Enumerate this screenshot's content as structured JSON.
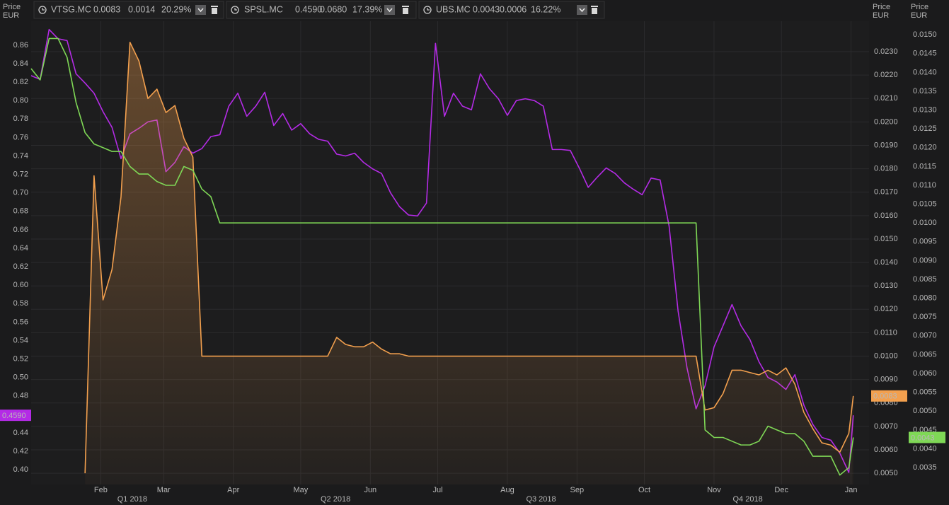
{
  "chart_data": {
    "type": "line",
    "axis_title": "Price",
    "axis_unit": "EUR",
    "grid": true,
    "x": [
      0,
      4,
      8,
      12,
      16,
      20,
      24,
      28,
      32,
      36,
      40,
      44,
      48,
      52,
      56,
      60,
      64,
      68,
      72,
      76,
      80,
      84,
      88,
      92,
      96,
      100,
      104,
      108,
      112,
      116,
      120,
      124,
      128,
      132,
      136,
      140,
      144,
      148,
      152,
      156,
      160,
      164,
      168,
      172,
      176,
      180,
      184,
      188,
      192,
      196,
      200,
      204,
      208,
      212,
      216,
      220,
      224,
      228,
      232,
      236,
      240,
      244,
      248,
      252,
      256,
      260,
      264,
      268,
      272,
      276,
      280,
      284,
      288,
      292,
      296,
      300,
      304,
      308,
      312,
      316,
      320,
      324,
      328,
      332,
      336,
      340,
      344,
      348,
      352,
      356,
      360,
      364,
      366
    ],
    "xlim": [
      0,
      373
    ],
    "xticks": [
      {
        "value": 31,
        "label": "Feb"
      },
      {
        "value": 59,
        "label": "Mar"
      },
      {
        "value": 90,
        "label": "Apr"
      },
      {
        "value": 120,
        "label": "May"
      },
      {
        "value": 151,
        "label": "Jun"
      },
      {
        "value": 181,
        "label": "Jul"
      },
      {
        "value": 212,
        "label": "Aug"
      },
      {
        "value": 243,
        "label": "Sep"
      },
      {
        "value": 273,
        "label": "Oct"
      },
      {
        "value": 304,
        "label": "Nov"
      },
      {
        "value": 334,
        "label": "Dec"
      },
      {
        "value": 365,
        "label": "Jan"
      }
    ],
    "quarters": [
      "Q1 2018",
      "Q2 2018",
      "Q3 2018",
      "Q4 2018"
    ],
    "ylim": [
      0.384,
      0.886
    ],
    "yticks": [
      {
        "value": 0.4,
        "label": "0.40"
      },
      0.42,
      0.44,
      0.46,
      0.48,
      {
        "value": 0.5,
        "label": "0.50"
      },
      0.52,
      0.54,
      0.56,
      0.58,
      {
        "value": 0.6,
        "label": "0.60"
      },
      0.62,
      0.64,
      0.66,
      0.68,
      {
        "value": 0.7,
        "label": "0.70"
      },
      0.72,
      0.74,
      0.76,
      0.78,
      {
        "value": 0.8,
        "label": "0.80"
      },
      0.82,
      0.84,
      0.86
    ],
    "y2lim": [
      0.00452,
      0.0243
    ],
    "y2ticks": [
      {
        "value": 0.005,
        "label": "0.0050"
      },
      {
        "value": 0.006,
        "label": "0.0060"
      },
      {
        "value": 0.007,
        "label": "0.0070"
      },
      {
        "value": 0.008,
        "label": "0.0080"
      },
      {
        "value": 0.009,
        "label": "0.0090"
      },
      {
        "value": 0.01,
        "label": "0.0100"
      },
      {
        "value": 0.011,
        "label": "0.0110"
      },
      {
        "value": 0.012,
        "label": "0.0120"
      },
      {
        "value": 0.013,
        "label": "0.0130"
      },
      {
        "value": 0.014,
        "label": "0.0140"
      },
      {
        "value": 0.015,
        "label": "0.0150"
      },
      {
        "value": 0.016,
        "label": "0.0160"
      },
      {
        "value": 0.017,
        "label": "0.0170"
      },
      {
        "value": 0.018,
        "label": "0.0180"
      },
      {
        "value": 0.019,
        "label": "0.0190"
      },
      {
        "value": 0.02,
        "label": "0.0200"
      },
      {
        "value": 0.021,
        "label": "0.0210"
      },
      {
        "value": 0.022,
        "label": "0.0220"
      },
      {
        "value": 0.023,
        "label": "0.0230"
      }
    ],
    "y3lim": [
      0.00305,
      0.01536
    ],
    "y3ticks": [
      0.0035,
      {
        "value": 0.004,
        "label": "0.0040"
      },
      0.0045,
      {
        "value": 0.005,
        "label": "0.0050"
      },
      0.0055,
      {
        "value": 0.006,
        "label": "0.0060"
      },
      0.0065,
      {
        "value": 0.007,
        "label": "0.0070"
      },
      0.0075,
      {
        "value": 0.008,
        "label": "0.0080"
      },
      0.0085,
      {
        "value": 0.009,
        "label": "0.0090"
      },
      0.0095,
      {
        "value": 0.01,
        "label": "0.0100"
      },
      0.0105,
      {
        "value": 0.011,
        "label": "0.0110"
      },
      0.0115,
      {
        "value": 0.012,
        "label": "0.0120"
      },
      0.0125,
      {
        "value": 0.013,
        "label": "0.0130"
      },
      0.0135,
      {
        "value": 0.014,
        "label": "0.0140"
      },
      0.0145,
      {
        "value": 0.015,
        "label": "0.0150"
      }
    ],
    "series": [
      {
        "name": "VTSG.MC",
        "color": "#f3a04e",
        "axis": "y2",
        "area": true,
        "last": 0.0083,
        "change": 0.0014,
        "change_pct": {
          "value": 20.29,
          "label": "20.29%"
        },
        "values": [
          null,
          null,
          null,
          null,
          null,
          null,
          0.005,
          0.0177,
          0.0124,
          0.0137,
          0.0168,
          0.0234,
          0.0226,
          0.021,
          0.0214,
          0.0204,
          0.0207,
          0.0193,
          0.0185,
          0.01,
          0.01,
          0.01,
          0.01,
          0.01,
          0.01,
          0.01,
          0.01,
          0.01,
          0.01,
          0.01,
          0.01,
          0.01,
          0.01,
          0.01,
          0.0108,
          0.0105,
          0.0104,
          0.0104,
          0.0106,
          0.0103,
          0.0101,
          0.0101,
          0.01,
          0.01,
          0.01,
          0.01,
          0.01,
          0.01,
          0.01,
          0.01,
          0.01,
          0.01,
          0.01,
          0.01,
          0.01,
          0.01,
          0.01,
          0.01,
          0.01,
          0.01,
          0.01,
          0.01,
          0.01,
          0.01,
          0.01,
          0.01,
          0.01,
          0.01,
          0.01,
          0.01,
          0.01,
          0.01,
          0.01,
          0.01,
          0.01,
          0.0077,
          0.0078,
          0.0084,
          0.0094,
          0.0094,
          0.0093,
          0.0092,
          0.0094,
          0.0092,
          0.0095,
          0.0088,
          0.0076,
          0.0069,
          0.0063,
          0.0062,
          0.0059,
          0.0067,
          0.0083
        ]
      },
      {
        "name": "SPSL.MC",
        "color": "#b42be6",
        "axis": "y",
        "last": {
          "value": 0.459,
          "label": "0.4590"
        },
        "change": {
          "value": 0.068,
          "label": "0.0680"
        },
        "change_pct": {
          "value": 17.39,
          "label": "17.39%"
        },
        "values": [
          0.827,
          0.823,
          0.877,
          0.867,
          0.865,
          0.829,
          0.819,
          0.808,
          0.788,
          0.771,
          0.737,
          0.764,
          0.77,
          0.777,
          0.779,
          0.723,
          0.733,
          0.75,
          0.743,
          0.748,
          0.761,
          0.763,
          0.794,
          0.808,
          0.783,
          0.794,
          0.809,
          0.773,
          0.786,
          0.768,
          0.775,
          0.764,
          0.758,
          0.756,
          0.742,
          0.74,
          0.743,
          0.733,
          0.726,
          0.721,
          0.7,
          0.685,
          0.676,
          0.675,
          0.689,
          0.862,
          0.783,
          0.808,
          0.794,
          0.79,
          0.829,
          0.813,
          0.802,
          0.784,
          0.8,
          0.802,
          0.8,
          0.794,
          0.747,
          0.747,
          0.746,
          0.727,
          0.706,
          0.717,
          0.727,
          0.721,
          0.711,
          0.704,
          0.698,
          0.716,
          0.714,
          0.664,
          0.572,
          0.51,
          0.466,
          0.491,
          0.533,
          0.556,
          0.579,
          0.556,
          0.541,
          0.517,
          0.5,
          0.495,
          0.487,
          0.503,
          0.47,
          0.449,
          0.435,
          0.432,
          0.418,
          0.397,
          0.459
        ]
      },
      {
        "name": "UBS.MC",
        "color": "#7fd856",
        "axis": "y3",
        "last": 0.0043,
        "change": 0.0006,
        "change_pct": {
          "value": 16.22,
          "label": "16.22%"
        },
        "values": [
          0.0141,
          0.0138,
          0.0149,
          0.0149,
          0.0144,
          0.0132,
          0.0124,
          0.0121,
          0.012,
          0.0119,
          0.0119,
          0.0115,
          0.0113,
          0.0113,
          0.0111,
          0.011,
          0.011,
          0.0115,
          0.0114,
          0.0109,
          0.0107,
          0.01,
          0.01,
          0.01,
          0.01,
          0.01,
          0.01,
          0.01,
          0.01,
          0.01,
          0.01,
          0.01,
          0.01,
          0.01,
          0.01,
          0.01,
          0.01,
          0.01,
          0.01,
          0.01,
          0.01,
          0.01,
          0.01,
          0.01,
          0.01,
          0.01,
          0.01,
          0.01,
          0.01,
          0.01,
          0.01,
          0.01,
          0.01,
          0.01,
          0.01,
          0.01,
          0.01,
          0.01,
          0.01,
          0.01,
          0.01,
          0.01,
          0.01,
          0.01,
          0.01,
          0.01,
          0.01,
          0.01,
          0.01,
          0.01,
          0.01,
          0.01,
          0.01,
          0.01,
          0.01,
          0.0045,
          0.0043,
          0.0043,
          0.0042,
          0.0041,
          0.0041,
          0.0042,
          0.0046,
          0.0045,
          0.0044,
          0.0044,
          0.0042,
          0.0038,
          0.0038,
          0.0038,
          0.0033,
          0.0035,
          0.0043
        ]
      }
    ]
  }
}
